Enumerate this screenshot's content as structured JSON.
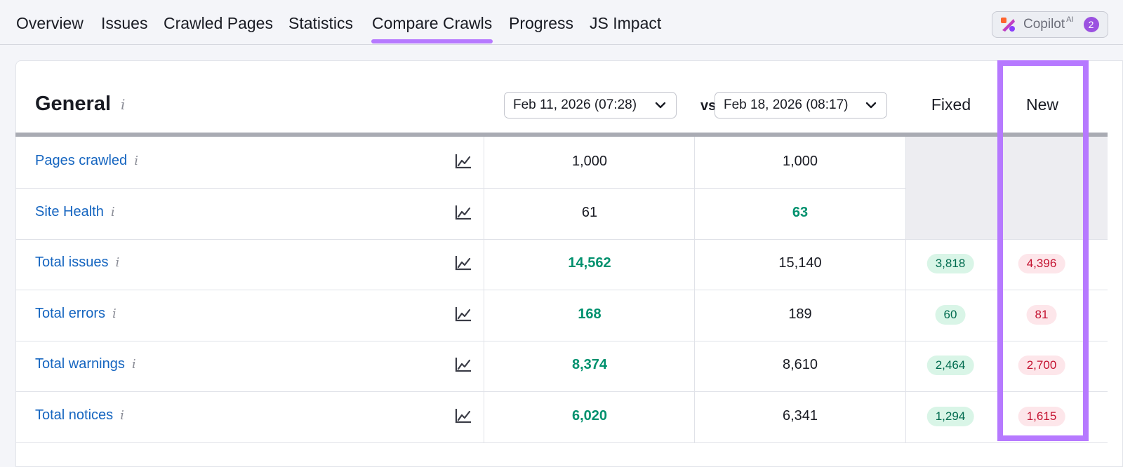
{
  "nav": {
    "tabs": [
      {
        "label": "Overview"
      },
      {
        "label": "Issues"
      },
      {
        "label": "Crawled Pages"
      },
      {
        "label": "Statistics"
      },
      {
        "label": "Compare Crawls",
        "active": true
      },
      {
        "label": "Progress"
      },
      {
        "label": "JS Impact"
      }
    ],
    "copilot": {
      "label": "Copilot",
      "sup": "AI",
      "badge": "2"
    }
  },
  "section": {
    "title": "General",
    "info_icon": "i",
    "date1": "Feb 11, 2026 (07:28)",
    "vs": "vs",
    "date2": "Feb 18, 2026 (08:17)",
    "col_fixed": "Fixed",
    "col_new": "New"
  },
  "rows": [
    {
      "label": "Pages crawled",
      "v1": "1,000",
      "v1_better": false,
      "v2": "1,000",
      "v2_better": false,
      "fixed": "",
      "new": ""
    },
    {
      "label": "Site Health",
      "v1": "61",
      "v1_better": false,
      "v2": "63",
      "v2_better": true,
      "fixed": "",
      "new": ""
    },
    {
      "label": "Total issues",
      "v1": "14,562",
      "v1_better": true,
      "v2": "15,140",
      "v2_better": false,
      "fixed": "3,818",
      "new": "4,396"
    },
    {
      "label": "Total errors",
      "v1": "168",
      "v1_better": true,
      "v2": "189",
      "v2_better": false,
      "fixed": "60",
      "new": "81"
    },
    {
      "label": "Total warnings",
      "v1": "8,374",
      "v1_better": true,
      "v2": "8,610",
      "v2_better": false,
      "fixed": "2,464",
      "new": "2,700"
    },
    {
      "label": "Total notices",
      "v1": "6,020",
      "v1_better": true,
      "v2": "6,341",
      "v2_better": false,
      "fixed": "1,294",
      "new": "1,615"
    }
  ],
  "colors": {
    "accent": "#b679ff",
    "link": "#1565c0",
    "improved": "#00916e",
    "fixed_bg": "#d9f5e7",
    "new_bg": "#fde6ea",
    "new_text": "#c41230"
  },
  "icons": {
    "chart": "line-chart-icon",
    "dropdown": "chevron-down-icon",
    "info": "info-icon"
  }
}
